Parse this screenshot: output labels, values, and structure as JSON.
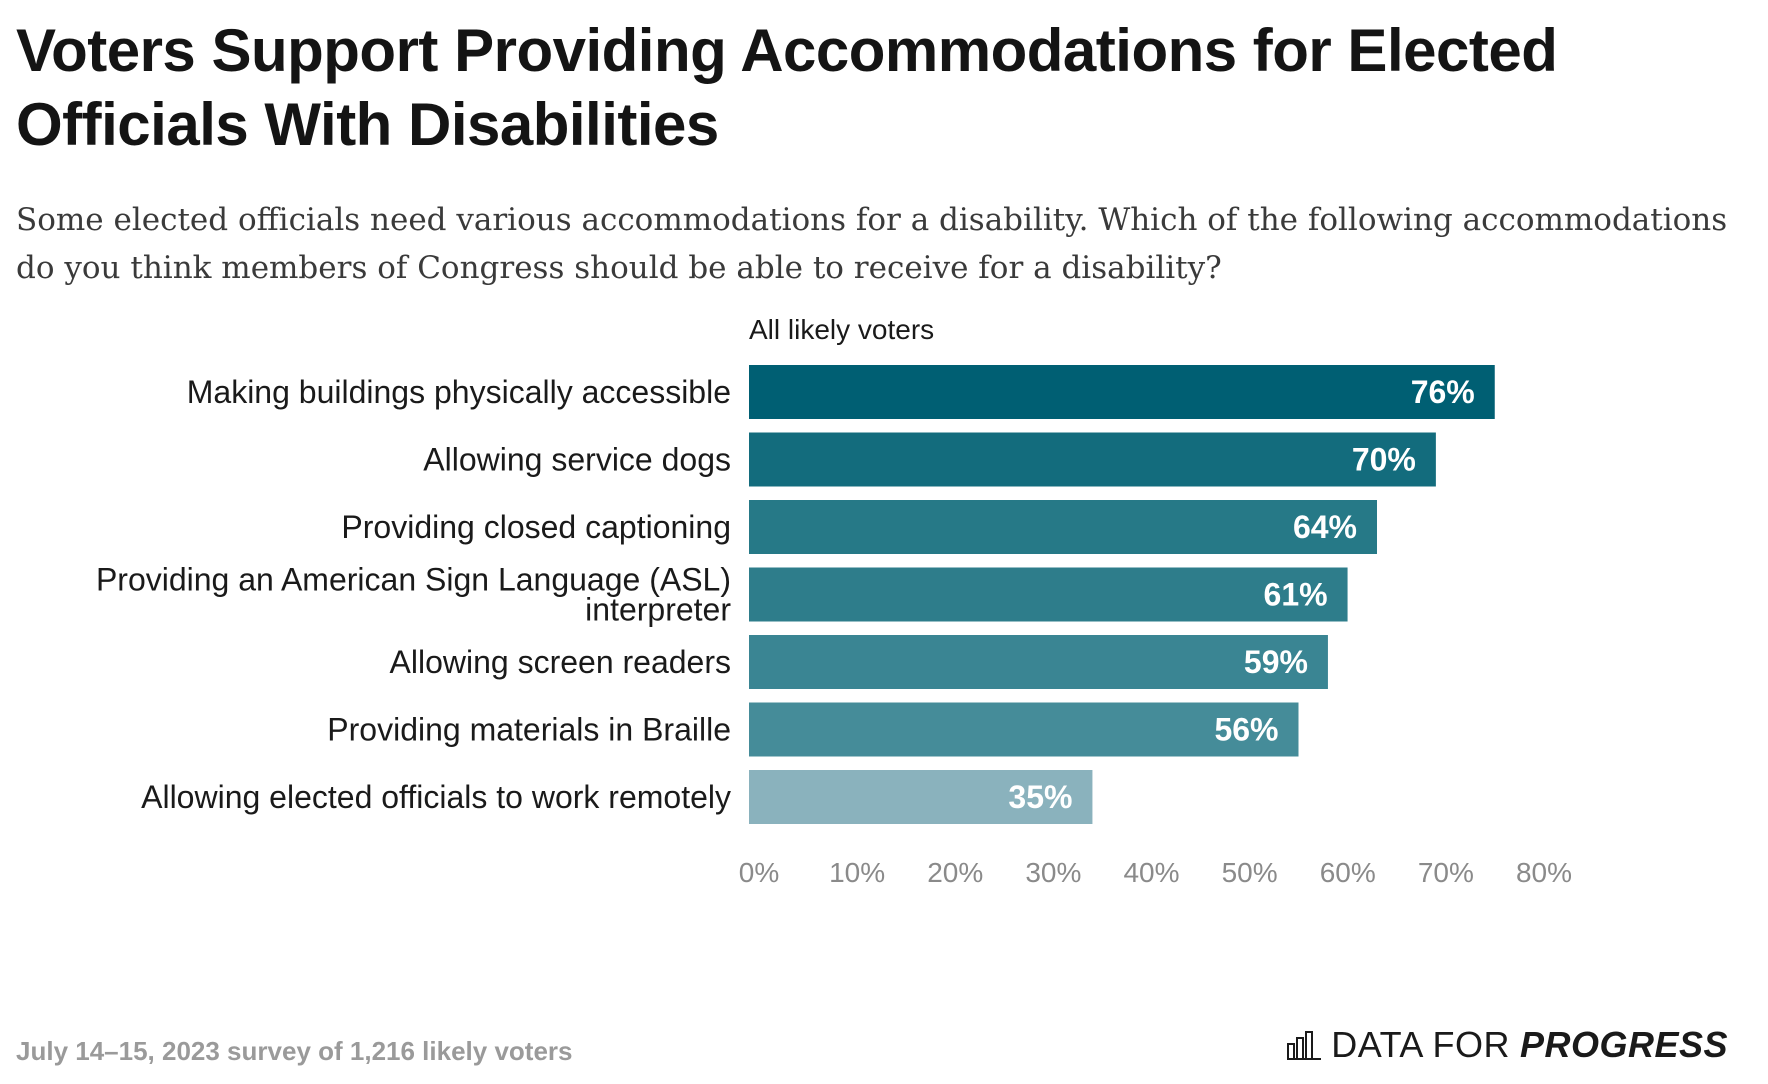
{
  "header": {
    "title": "Voters Support Providing Accommodations for Elected Officials With Disabilities",
    "subtitle": "Some elected officials need various accommodations for a disability. Which of the following accommodations do you think members of Congress should be able to receive for a disability?"
  },
  "footer": {
    "source": "July 14–15, 2023 survey of 1,216 likely voters",
    "brand_prefix": "DATA FOR",
    "brand_emphasis": "PROGRESS"
  },
  "chart_data": {
    "type": "bar",
    "orientation": "horizontal",
    "series_label": "All likely voters",
    "categories": [
      [
        "Making buildings physically accessible"
      ],
      [
        "Allowing service dogs"
      ],
      [
        "Providing closed captioning"
      ],
      [
        "Providing an American Sign Language (ASL)",
        "interpreter"
      ],
      [
        "Allowing screen readers"
      ],
      [
        "Providing materials in Braille"
      ],
      [
        "Allowing elected officials to work remotely"
      ]
    ],
    "values": [
      76,
      70,
      64,
      61,
      59,
      56,
      35
    ],
    "value_labels": [
      "76%",
      "70%",
      "64%",
      "61%",
      "59%",
      "56%",
      "35%"
    ],
    "colors": [
      "#005f73",
      "#136c7d",
      "#267987",
      "#2e7d8b",
      "#3a8593",
      "#458c99",
      "#8ab2bd"
    ],
    "xlim": [
      0,
      80
    ],
    "ticks": [
      0,
      10,
      20,
      30,
      40,
      50,
      60,
      70,
      80
    ],
    "tick_labels": [
      "0%",
      "10%",
      "20%",
      "30%",
      "40%",
      "50%",
      "60%",
      "70%",
      "80%"
    ],
    "grid": false,
    "legend": "none"
  }
}
